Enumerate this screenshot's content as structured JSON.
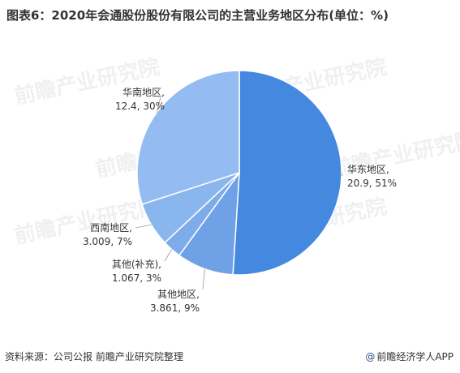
{
  "title": "图表6：2020年会通股份股份有限公司的主营业务地区分布(单位：%)",
  "chart_data": {
    "type": "pie",
    "title": "图表6：2020年会通股份股份有限公司的主营业务地区分布(单位：%)",
    "slices": [
      {
        "name": "华东地区",
        "value": 20.9,
        "percent": 51,
        "label_value": "20.9, 51%",
        "color": "#4488e0"
      },
      {
        "name": "其他地区",
        "value": 3.861,
        "percent": 9,
        "label_value": "3.861, 9%",
        "color": "#6ea1e6"
      },
      {
        "name": "其他(补充)",
        "value": 1.067,
        "percent": 3,
        "label_value": "1.067, 3%",
        "color": "#7eacea"
      },
      {
        "name": "西南地区",
        "value": 3.009,
        "percent": 7,
        "label_value": "3.009, 7%",
        "color": "#8ab6ee"
      },
      {
        "name": "华南地区",
        "value": 12.4,
        "percent": 30,
        "label_value": "12.4, 30%",
        "color": "#94bcf2"
      }
    ]
  },
  "footer": {
    "source": "资料来源：公司公报 前瞻产业研究院整理",
    "brand_mark": "@",
    "brand": "前瞻经济学人APP"
  },
  "watermark": {
    "text": "前瞻产业研究院"
  }
}
